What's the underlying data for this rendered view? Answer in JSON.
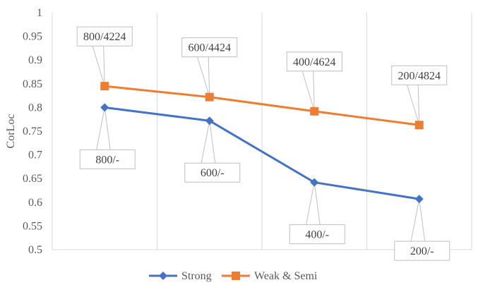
{
  "chart_data": {
    "type": "line",
    "xlabel": "",
    "ylabel": "CorLoc",
    "ylim": [
      0.5,
      1
    ],
    "yticks": [
      "0.5",
      "0.55",
      "0.6",
      "0.65",
      "0.7",
      "0.75",
      "0.8",
      "0.85",
      "0.9",
      "0.95",
      "1"
    ],
    "grid": "vertical",
    "legend_position": "bottom",
    "series": [
      {
        "name": "Strong",
        "color": "#4472C4",
        "marker": "diamond",
        "values": [
          0.8,
          0.772,
          0.642,
          0.607
        ],
        "labels": [
          "800/-",
          "600/-",
          "400/-",
          "200/-"
        ]
      },
      {
        "name": "Weak & Semi",
        "color": "#ED7D31",
        "marker": "square",
        "values": [
          0.845,
          0.822,
          0.792,
          0.763
        ],
        "labels": [
          "800/4224",
          "600/4424",
          "400/4624",
          "200/4824"
        ]
      }
    ]
  }
}
